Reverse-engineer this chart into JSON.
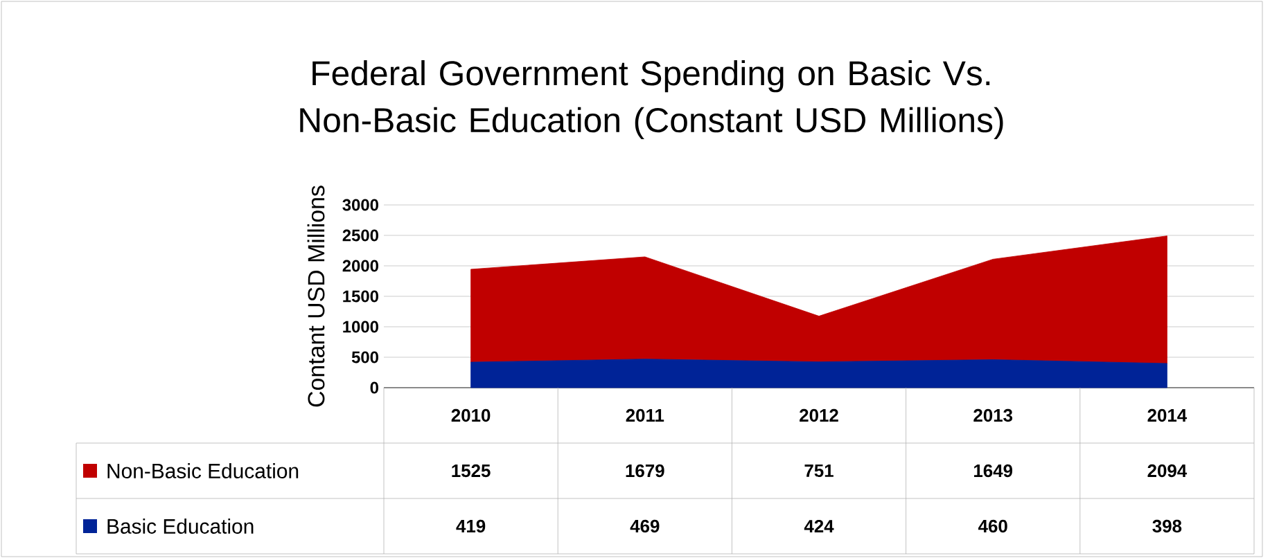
{
  "chart_data": {
    "type": "area",
    "title": "Federal Government Spending on Basic Vs. Non-Basic Education (Constant USD Millions)",
    "ylabel": "Contant USD Millions",
    "categories": [
      "2010",
      "2011",
      "2012",
      "2013",
      "2014"
    ],
    "stacked": true,
    "series": [
      {
        "name": "Basic Education",
        "color": "#002397",
        "values": [
          419,
          469,
          424,
          460,
          398
        ]
      },
      {
        "name": "Non-Basic Education",
        "color": "#c00000",
        "values": [
          1525,
          1679,
          751,
          1649,
          2094
        ]
      }
    ],
    "ylim": [
      0,
      3000
    ],
    "yticks": [
      0,
      500,
      1000,
      1500,
      2000,
      2500,
      3000
    ],
    "grid": "y",
    "data_labels": true,
    "legend": "bottom left"
  }
}
